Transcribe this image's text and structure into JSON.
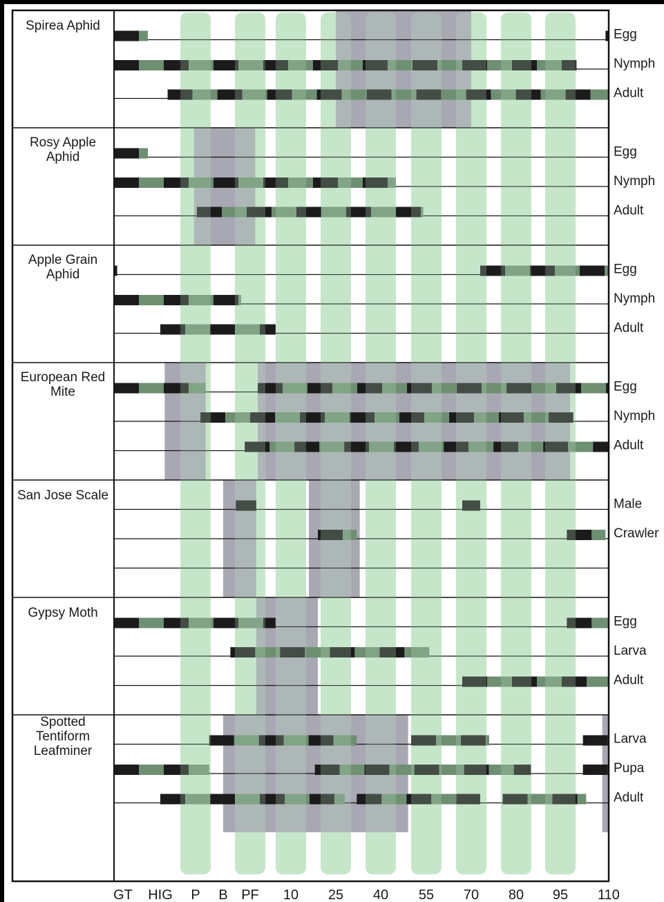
{
  "chart_data": {
    "type": "table",
    "x_ticks": [
      "GT",
      "HIG",
      "P",
      "B",
      "PF",
      "10",
      "25",
      "40",
      "55",
      "70",
      "80",
      "95",
      "110"
    ],
    "colors": {
      "bar": "#1b1b1b",
      "bar_overlay": "#6e8f72",
      "spray_band": "#bfe3c3",
      "timing_window": "#a8a8b3",
      "grid": "#111111",
      "paper": "#ffffff"
    },
    "spray_bands_at_ticks": [
      "P",
      "PF",
      "10",
      "25",
      "40",
      "55",
      "70",
      "80",
      "95"
    ],
    "pests": [
      {
        "name_lines": [
          "Spirea Aphid"
        ],
        "windows": [
          [
            25,
            70
          ]
        ],
        "stages": [
          {
            "label": "Egg",
            "segments": [
              [
                -7,
                -4
              ],
              [
                109,
                110
              ]
            ]
          },
          {
            "label": "Nymph",
            "segments": [
              [
                -7,
                100
              ]
            ]
          },
          {
            "label": "Adult",
            "segments": [
              [
                -3,
                110
              ]
            ]
          }
        ]
      },
      {
        "name_lines": [
          "Rosy Apple",
          "Aphid"
        ],
        "windows": [
          [
            -1.2,
            3
          ]
        ],
        "stages": [
          {
            "label": "Egg",
            "segments": [
              [
                -7,
                -4
              ]
            ]
          },
          {
            "label": "Nymph",
            "segments": [
              [
                -7,
                45
              ]
            ]
          },
          {
            "label": "Adult",
            "segments": [
              [
                -1,
                54
              ]
            ]
          }
        ]
      },
      {
        "name_lines": [
          "Apple Grain",
          "Aphid"
        ],
        "windows": [],
        "stages": [
          {
            "label": "Egg",
            "segments": [
              [
                -7,
                -6.3
              ],
              [
                72,
                110
              ]
            ]
          },
          {
            "label": "Nymph",
            "segments": [
              [
                -7,
                1.5
              ]
            ]
          },
          {
            "label": "Adult",
            "segments": [
              [
                -3.5,
                7
              ]
            ]
          }
        ]
      },
      {
        "name_lines": [
          "European Red",
          "Mite"
        ],
        "windows": [
          [
            -3.2,
            -0.5
          ],
          [
            3.5,
            98
          ]
        ],
        "stages": [
          {
            "label": "Egg",
            "segments": [
              [
                -7,
                -0.5
              ],
              [
                3.5,
                110
              ]
            ]
          },
          {
            "label": "Nymph",
            "segments": [
              [
                -0.8,
                99
              ]
            ]
          },
          {
            "label": "Adult",
            "segments": [
              [
                1.7,
                110
              ]
            ]
          }
        ]
      },
      {
        "name_lines": [
          "San Jose Scale"
        ],
        "windows": [
          [
            0.5,
            3.2
          ],
          [
            16,
            33
          ]
        ],
        "stages": [
          {
            "label": "Male",
            "segments": [
              [
                1.2,
                3.2
              ],
              [
                67,
                72
              ]
            ]
          },
          {
            "label": "Crawler",
            "segments": [
              [
                19,
                32
              ],
              [
                97,
                109
              ]
            ]
          }
        ]
      },
      {
        "name_lines": [
          "Gypsy Moth"
        ],
        "windows": [
          [
            3.2,
            19
          ]
        ],
        "stages": [
          {
            "label": "Egg",
            "segments": [
              [
                -7,
                7
              ],
              [
                97,
                110
              ]
            ]
          },
          {
            "label": "Larva",
            "segments": [
              [
                0.9,
                56
              ]
            ]
          },
          {
            "label": "Adult",
            "segments": [
              [
                67,
                110
              ]
            ]
          }
        ]
      },
      {
        "name_lines": [
          "Spotted",
          "Tentiform",
          "Leafminer"
        ],
        "windows": [
          [
            0.5,
            49
          ],
          [
            108,
            110
          ]
        ],
        "stages": [
          {
            "label": "Larva",
            "segments": [
              [
                -0.3,
                32
              ],
              [
                50,
                74
              ],
              [
                102,
                110
              ]
            ]
          },
          {
            "label": "Pupa",
            "segments": [
              [
                -7,
                -0.3
              ],
              [
                18,
                85
              ],
              [
                102,
                110
              ]
            ]
          },
          {
            "label": "Adult",
            "segments": [
              [
                -3.5,
                28
              ],
              [
                32,
                72
              ],
              [
                77,
                103
              ]
            ]
          }
        ]
      }
    ]
  }
}
